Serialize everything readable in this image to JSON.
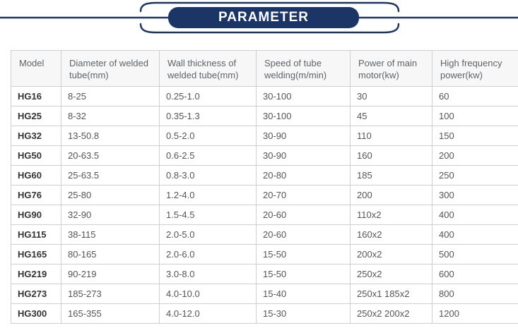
{
  "banner": {
    "title": "PARAMETER",
    "accent_color": "#1b3566",
    "text_color": "#ffffff"
  },
  "table": {
    "columns": [
      "Model",
      "Diameter of welded tube(mm)",
      "Wall thickness of welded tube(mm)",
      "Speed of tube welding(m/min)",
      "Power of main motor(kw)",
      "High frequency power(kw)"
    ],
    "rows": [
      [
        "HG16",
        "8-25",
        "0.25-1.0",
        "30-100",
        "30",
        "60"
      ],
      [
        "HG25",
        "8-32",
        "0.35-1.3",
        "30-100",
        "45",
        "100"
      ],
      [
        "HG32",
        "13-50.8",
        "0.5-2.0",
        "30-90",
        "110",
        "150"
      ],
      [
        "HG50",
        "20-63.5",
        "0.6-2.5",
        "30-90",
        "160",
        "200"
      ],
      [
        "HG60",
        "25-63.5",
        "0.8-3.0",
        "20-80",
        "185",
        "250"
      ],
      [
        "HG76",
        "25-80",
        "1.2-4.0",
        "20-70",
        "200",
        "300"
      ],
      [
        "HG90",
        "32-90",
        "1.5-4.5",
        "20-60",
        "110x2",
        "400"
      ],
      [
        "HG115",
        "38-115",
        "2.0-5.0",
        "20-60",
        "160x2",
        "400"
      ],
      [
        "HG165",
        "80-165",
        "2.0-6.0",
        "15-50",
        "200x2",
        "500"
      ],
      [
        "HG219",
        "90-219",
        "3.0-8.0",
        "15-50",
        "250x2",
        "600"
      ],
      [
        "HG273",
        "185-273",
        "4.0-10.0",
        "15-40",
        "250x1 185x2",
        "800"
      ],
      [
        "HG300",
        "165-355",
        "4.0-12.0",
        "15-30",
        "250x2 200x2",
        "1200"
      ]
    ]
  }
}
